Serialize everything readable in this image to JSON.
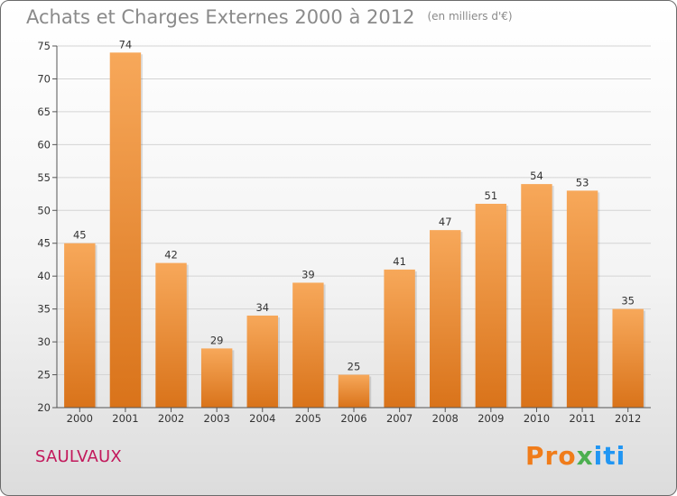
{
  "title": "Achats et Charges Externes 2000 à 2012",
  "unit": "(en milliers d'€)",
  "town": "SAULVAUX",
  "logo": {
    "p1": "Pro",
    "p2": "x",
    "p3": "iti"
  },
  "chart_data": {
    "type": "bar",
    "categories": [
      "2000",
      "2001",
      "2002",
      "2003",
      "2004",
      "2005",
      "2006",
      "2007",
      "2008",
      "2009",
      "2010",
      "2011",
      "2012"
    ],
    "values": [
      45,
      74,
      42,
      29,
      34,
      39,
      25,
      41,
      47,
      51,
      54,
      53,
      35
    ],
    "ylim": [
      20,
      75
    ],
    "yticks": [
      20,
      25,
      30,
      35,
      40,
      45,
      50,
      55,
      60,
      65,
      70,
      75
    ],
    "grid": true,
    "colors": {
      "bar_top": "#f7a85a",
      "bar_bottom": "#d9731a",
      "grid": "#d4d4d4",
      "axis": "#555555"
    }
  }
}
